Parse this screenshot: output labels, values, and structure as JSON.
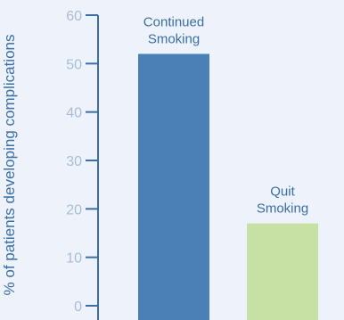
{
  "chart_data": {
    "type": "bar",
    "title": "",
    "xlabel": "",
    "ylabel": "% of patients developing complications",
    "ylim": [
      0,
      60
    ],
    "yticks": [
      0,
      10,
      20,
      30,
      40,
      50,
      60
    ],
    "grid": false,
    "categories": [
      "Continued Smoking",
      "Quit Smoking"
    ],
    "bar_labels": [
      [
        "Continued",
        "Smoking"
      ],
      [
        "Quit",
        "Smoking"
      ]
    ],
    "values": [
      52,
      17
    ],
    "colors": [
      "#4a80b5",
      "#c6e1a3"
    ],
    "axis_color": "#3b6fa6",
    "tick_color": "#a8bcd6",
    "background": "#eef3fb"
  }
}
